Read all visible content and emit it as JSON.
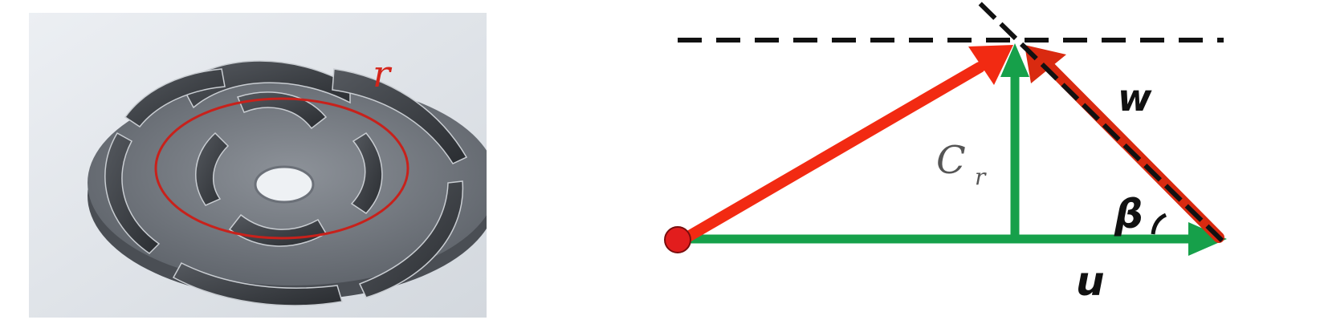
{
  "impeller": {
    "radius_label": "r",
    "colors": {
      "circle": "#c8211b",
      "label": "#d4241a",
      "metal": "#3a3d42",
      "background": "#dfe3e8"
    }
  },
  "velocity_triangle": {
    "labels": {
      "w": "w",
      "cr_main": "C",
      "cr_sub": "r",
      "beta": "β",
      "u": "u"
    },
    "colors": {
      "absolute_velocity": "#f22a12",
      "relative_velocity": "#d92a10",
      "u_and_cr": "#16a04a",
      "dash": "#111111",
      "origin_dot": "#e21d1d"
    },
    "icons": {
      "origin": "origin-dot-icon"
    }
  }
}
